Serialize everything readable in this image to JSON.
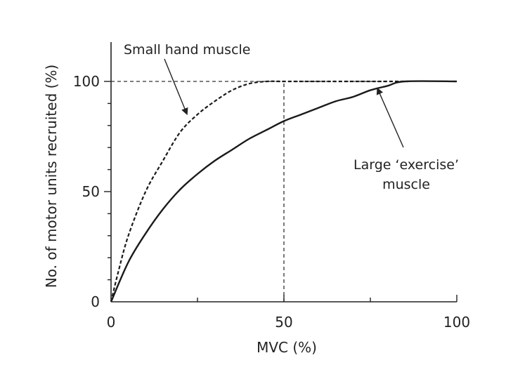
{
  "chart_data": {
    "type": "line",
    "xlabel": "MVC (%)",
    "ylabel": "No. of motor units recruited (%)",
    "xlim": [
      0,
      100
    ],
    "ylim": [
      0,
      100
    ],
    "x_ticks": [
      0,
      50,
      100
    ],
    "y_ticks": [
      0,
      50,
      100
    ],
    "x_tick_labels": [
      "0",
      "50",
      "100"
    ],
    "y_tick_labels": [
      "0",
      "50",
      "100"
    ],
    "grid": false,
    "series": [
      {
        "style": "dashed",
        "points": [
          [
            0,
            0
          ],
          [
            2,
            13
          ],
          [
            5,
            30
          ],
          [
            10,
            50
          ],
          [
            15,
            64
          ],
          [
            20,
            77
          ],
          [
            25,
            85
          ],
          [
            30,
            91
          ],
          [
            35,
            96
          ],
          [
            40,
            99
          ],
          [
            45,
            100
          ],
          [
            50,
            100
          ],
          [
            60,
            100
          ],
          [
            70,
            100
          ],
          [
            86,
            100
          ]
        ]
      },
      {
        "style": "solid",
        "points": [
          [
            0,
            0
          ],
          [
            5,
            18
          ],
          [
            10,
            31
          ],
          [
            15,
            42
          ],
          [
            20,
            51
          ],
          [
            25,
            58
          ],
          [
            30,
            64
          ],
          [
            35,
            69
          ],
          [
            40,
            74
          ],
          [
            45,
            78
          ],
          [
            50,
            82
          ],
          [
            55,
            85
          ],
          [
            60,
            88
          ],
          [
            65,
            91
          ],
          [
            70,
            93
          ],
          [
            75,
            96
          ],
          [
            80,
            98
          ],
          [
            85,
            100
          ],
          [
            100,
            100
          ]
        ]
      }
    ],
    "reference_lines": [
      {
        "orientation": "horizontal",
        "value": 100,
        "from": 0,
        "to": 86,
        "style": "dashed"
      },
      {
        "orientation": "vertical",
        "value": 50,
        "from": 0,
        "to": 100,
        "style": "dashed"
      }
    ],
    "annotations": [
      {
        "lines": [
          "Small hand muscle"
        ],
        "points_to": [
          22,
          85
        ]
      },
      {
        "lines": [
          "Large ‘exercise’",
          "muscle"
        ],
        "points_to": [
          77,
          97
        ]
      }
    ]
  }
}
